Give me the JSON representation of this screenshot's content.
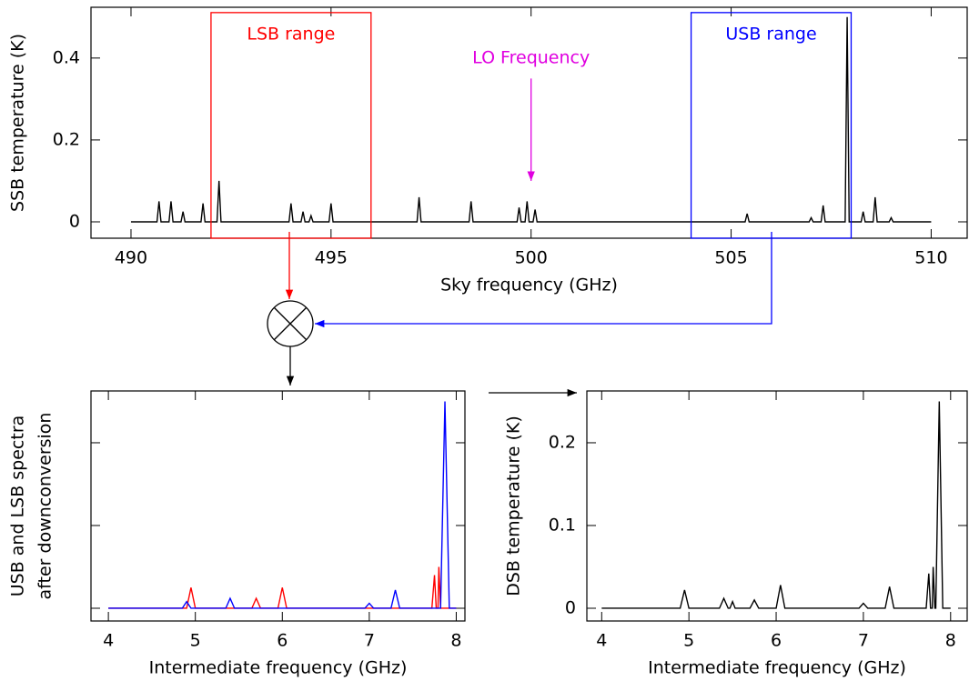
{
  "chart_data": [
    {
      "type": "line",
      "xlabel": "Sky frequency (GHz)",
      "ylabel": [
        "SSB temperature (K)"
      ],
      "xlim": [
        489,
        510.9
      ],
      "ylim": [
        -0.04,
        0.524
      ],
      "xticks": [
        490,
        495,
        500,
        505,
        510
      ],
      "yticks": [
        0,
        0.2,
        0.4
      ],
      "show_ytick_labels": true,
      "series": [
        {
          "color": "#000000",
          "x": [
            490,
            490.65,
            490.7,
            490.75,
            490.95,
            491.0,
            491.05,
            491.25,
            491.3,
            491.35,
            491.75,
            491.8,
            491.85,
            492.15,
            492.2,
            492.25,
            493.95,
            494.0,
            494.05,
            494.25,
            494.3,
            494.35,
            494.45,
            494.5,
            494.55,
            494.95,
            495.0,
            495.05,
            497.15,
            497.2,
            497.25,
            498.45,
            498.5,
            498.55,
            499.65,
            499.7,
            499.75,
            499.85,
            499.9,
            499.95,
            500.05,
            500.1,
            500.15,
            505.35,
            505.4,
            505.45,
            506.95,
            507.0,
            507.05,
            507.25,
            507.3,
            507.35,
            507.85,
            507.9,
            507.95,
            508.25,
            508.3,
            508.35,
            508.55,
            508.6,
            508.65,
            508.95,
            509.0,
            509.05,
            510
          ],
          "values": [
            0,
            0,
            0.05,
            0,
            0,
            0.05,
            0,
            0,
            0.025,
            0,
            0,
            0.045,
            0,
            0,
            0.1,
            0,
            0,
            0.045,
            0,
            0,
            0.025,
            0,
            0,
            0.015,
            0,
            0,
            0.045,
            0,
            0,
            0.06,
            0,
            0,
            0.05,
            0,
            0,
            0.035,
            0,
            0,
            0.05,
            0,
            0,
            0.03,
            0,
            0,
            0.02,
            0,
            0,
            0.01,
            0,
            0,
            0.04,
            0,
            0,
            0.5,
            0,
            0,
            0.025,
            0,
            0,
            0.06,
            0,
            0,
            0.01,
            0,
            0
          ]
        }
      ],
      "ranges": [
        {
          "name": "LSB range",
          "xlim": [
            492,
            496
          ],
          "ylim": [
            -0.04,
            0.511
          ],
          "color": "#ff0000"
        },
        {
          "name": "USB range",
          "xlim": [
            504,
            508
          ],
          "ylim": [
            -0.04,
            0.511
          ],
          "color": "#0000ff"
        }
      ],
      "annotations": [
        {
          "text": "LO Frequency",
          "x": 500,
          "y": 0.4,
          "arrow_from": 0.35,
          "arrow_to": 0.1,
          "color": "#e000e0"
        }
      ]
    },
    {
      "type": "line",
      "xlabel": "Intermediate frequency (GHz)",
      "ylabel": [
        "USB and LSB spectra",
        "after downconversion"
      ],
      "xlim": [
        3.8,
        8.1
      ],
      "ylim": [
        -0.0154,
        0.2626
      ],
      "xticks": [
        4,
        5,
        6,
        7,
        8
      ],
      "yticks": [
        0,
        0.1,
        0.2
      ],
      "show_ytick_labels": false,
      "series": [
        {
          "color": "#ff0000",
          "x": [
            4,
            4.9,
            4.95,
            5.0,
            5.65,
            5.7,
            5.75,
            5.95,
            6.0,
            6.05,
            7.72,
            7.75,
            7.77,
            7.79,
            7.8,
            7.82,
            8
          ],
          "values": [
            0,
            0,
            0.025,
            0,
            0,
            0.012,
            0,
            0,
            0.025,
            0,
            0,
            0.04,
            0,
            0,
            0.05,
            0,
            0
          ]
        },
        {
          "color": "#0000ff",
          "x": [
            4,
            4.85,
            4.9,
            4.95,
            5.35,
            5.4,
            5.45,
            6.95,
            7.0,
            7.05,
            7.25,
            7.3,
            7.35,
            7.82,
            7.87,
            7.92,
            8
          ],
          "values": [
            0,
            0,
            0.008,
            0,
            0,
            0.012,
            0,
            0,
            0.006,
            0,
            0,
            0.022,
            0,
            0,
            0.25,
            0,
            0
          ]
        }
      ]
    },
    {
      "type": "line",
      "xlabel": "Intermediate frequency (GHz)",
      "ylabel": [
        "DSB temperature (K)"
      ],
      "xlim": [
        3.83,
        8.19
      ],
      "ylim": [
        -0.0154,
        0.2626
      ],
      "xticks": [
        4,
        5,
        6,
        7,
        8
      ],
      "yticks": [
        0,
        0.1,
        0.2
      ],
      "show_ytick_labels": true,
      "series": [
        {
          "color": "#000000",
          "x": [
            4,
            4.9,
            4.95,
            5.0,
            5.35,
            5.4,
            5.45,
            5.47,
            5.5,
            5.53,
            5.7,
            5.75,
            5.8,
            6.0,
            6.05,
            6.1,
            6.95,
            7.0,
            7.05,
            7.25,
            7.3,
            7.35,
            7.72,
            7.75,
            7.77,
            7.79,
            7.8,
            7.82,
            7.83,
            7.87,
            7.91,
            8
          ],
          "values": [
            0,
            0,
            0.022,
            0,
            0,
            0.012,
            0,
            0,
            0.008,
            0,
            0,
            0.01,
            0,
            0,
            0.028,
            0,
            0,
            0.006,
            0,
            0,
            0.026,
            0,
            0,
            0.042,
            0,
            0,
            0.05,
            0,
            0,
            0.25,
            0,
            0
          ]
        }
      ]
    }
  ]
}
